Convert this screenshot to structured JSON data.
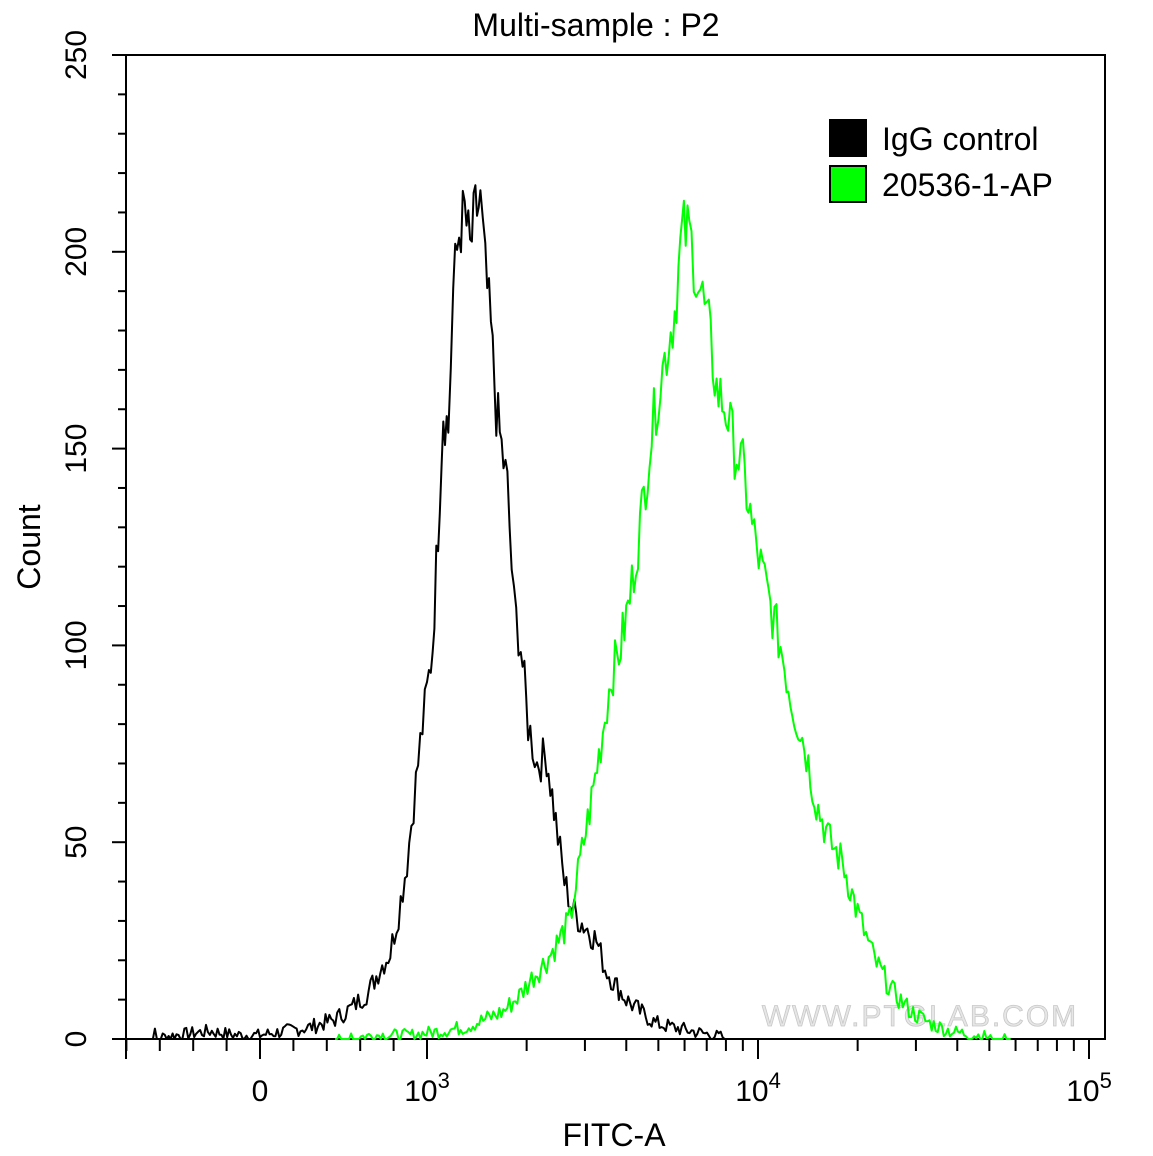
{
  "chart_data": {
    "type": "line",
    "title": "Multi-sample : P2",
    "xlabel": "FITC-A",
    "ylabel": "Count",
    "xscale": "biexponential (linear near 0, log above ~10^3)",
    "xlim": [
      -2000,
      100000
    ],
    "ylim": [
      0,
      250
    ],
    "yticks": [
      0,
      50,
      100,
      150,
      200,
      250
    ],
    "xtick_labels": [
      {
        "value": 0,
        "base": "0",
        "exp": ""
      },
      {
        "value": 1000,
        "base": "10",
        "exp": "3"
      },
      {
        "value": 10000,
        "base": "10",
        "exp": "4"
      },
      {
        "value": 100000,
        "base": "10",
        "exp": "5"
      }
    ],
    "grid": false,
    "legend_position": "top-right",
    "watermark": "WWW.PTGLAB.COM",
    "series": [
      {
        "name": "IgG control",
        "color": "#000000",
        "points": [
          [
            -700,
            0
          ],
          [
            -500,
            1
          ],
          [
            -300,
            2
          ],
          [
            -150,
            1
          ],
          [
            0,
            1
          ],
          [
            150,
            2
          ],
          [
            300,
            3
          ],
          [
            450,
            5
          ],
          [
            550,
            8
          ],
          [
            650,
            12
          ],
          [
            720,
            18
          ],
          [
            780,
            22
          ],
          [
            830,
            32
          ],
          [
            880,
            45
          ],
          [
            920,
            60
          ],
          [
            960,
            75
          ],
          [
            1000,
            88
          ],
          [
            1040,
            100
          ],
          [
            1080,
            130
          ],
          [
            1120,
            160
          ],
          [
            1160,
            155
          ],
          [
            1200,
            190
          ],
          [
            1250,
            205
          ],
          [
            1300,
            210
          ],
          [
            1350,
            200
          ],
          [
            1400,
            210
          ],
          [
            1450,
            212
          ],
          [
            1500,
            195
          ],
          [
            1560,
            180
          ],
          [
            1620,
            160
          ],
          [
            1680,
            150
          ],
          [
            1750,
            140
          ],
          [
            1830,
            110
          ],
          [
            1920,
            100
          ],
          [
            2020,
            80
          ],
          [
            2150,
            70
          ],
          [
            2300,
            72
          ],
          [
            2450,
            55
          ],
          [
            2600,
            40
          ],
          [
            2750,
            33
          ],
          [
            2900,
            30
          ],
          [
            3050,
            28
          ],
          [
            3250,
            25
          ],
          [
            3450,
            18
          ],
          [
            3700,
            14
          ],
          [
            4000,
            10
          ],
          [
            4400,
            7
          ],
          [
            4900,
            4
          ],
          [
            5500,
            3
          ],
          [
            6300,
            2
          ],
          [
            7300,
            1
          ],
          [
            8500,
            0
          ]
        ]
      },
      {
        "name": "20536-1-AP",
        "color": "#00ff00",
        "points": [
          [
            450,
            0
          ],
          [
            700,
            1
          ],
          [
            900,
            1
          ],
          [
            1100,
            2
          ],
          [
            1300,
            3
          ],
          [
            1500,
            5
          ],
          [
            1700,
            7
          ],
          [
            1900,
            11
          ],
          [
            2100,
            16
          ],
          [
            2300,
            20
          ],
          [
            2500,
            25
          ],
          [
            2700,
            30
          ],
          [
            2900,
            45
          ],
          [
            3100,
            58
          ],
          [
            3350,
            75
          ],
          [
            3600,
            92
          ],
          [
            3850,
            100
          ],
          [
            4100,
            112
          ],
          [
            4400,
            130
          ],
          [
            4700,
            150
          ],
          [
            5000,
            165
          ],
          [
            5300,
            175
          ],
          [
            5600,
            185
          ],
          [
            5900,
            205
          ],
          [
            6200,
            205
          ],
          [
            6500,
            195
          ],
          [
            6800,
            188
          ],
          [
            7100,
            180
          ],
          [
            7500,
            165
          ],
          [
            8000,
            160
          ],
          [
            8500,
            150
          ],
          [
            9000,
            145
          ],
          [
            9600,
            130
          ],
          [
            10200,
            120
          ],
          [
            10900,
            110
          ],
          [
            11700,
            100
          ],
          [
            12700,
            85
          ],
          [
            13800,
            75
          ],
          [
            15000,
            60
          ],
          [
            16500,
            50
          ],
          [
            18000,
            45
          ],
          [
            20000,
            32
          ],
          [
            22500,
            20
          ],
          [
            25500,
            12
          ],
          [
            29000,
            7
          ],
          [
            33000,
            4
          ],
          [
            38000,
            2
          ],
          [
            45000,
            1
          ],
          [
            58000,
            0
          ]
        ]
      }
    ]
  }
}
